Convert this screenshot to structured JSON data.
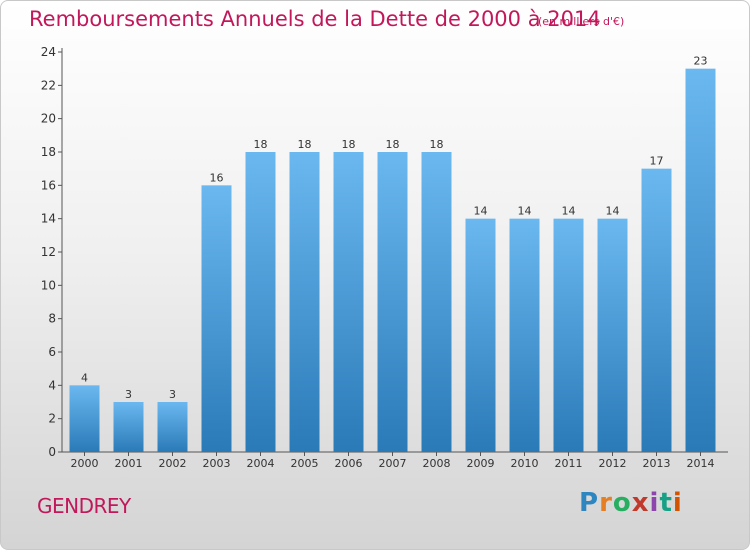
{
  "title": "Remboursements Annuels de la Dette de 2000 à 2014",
  "subtitle": "(en milliers d'€)",
  "commune": "GENDREY",
  "brand": {
    "name": "Proxiti",
    "letters": [
      "P",
      "r",
      "o",
      "x",
      "i",
      "t",
      "i"
    ],
    "colors": [
      "#2e86c1",
      "#e67e22",
      "#27ae60",
      "#c0392b",
      "#8e44ad",
      "#16a085",
      "#d35400"
    ]
  },
  "colors": {
    "bar_light": "#6bb8f0",
    "bar_dark": "#2a7ab8",
    "title": "#c2185b"
  },
  "chart_data": {
    "type": "bar",
    "title": "Remboursements Annuels de la Dette de 2000 à 2014",
    "ylabel": "en milliers d'€",
    "categories": [
      "2000",
      "2001",
      "2002",
      "2003",
      "2004",
      "2005",
      "2006",
      "2007",
      "2008",
      "2009",
      "2010",
      "2011",
      "2012",
      "2013",
      "2014"
    ],
    "values": [
      4,
      3,
      3,
      16,
      18,
      18,
      18,
      18,
      18,
      14,
      14,
      14,
      14,
      17,
      23
    ],
    "ylim": [
      0,
      24
    ],
    "yticks": [
      "0",
      "2",
      "4",
      "6",
      "8",
      "10",
      "12",
      "14",
      "16",
      "18",
      "20",
      "22",
      "24"
    ],
    "grid": false
  }
}
